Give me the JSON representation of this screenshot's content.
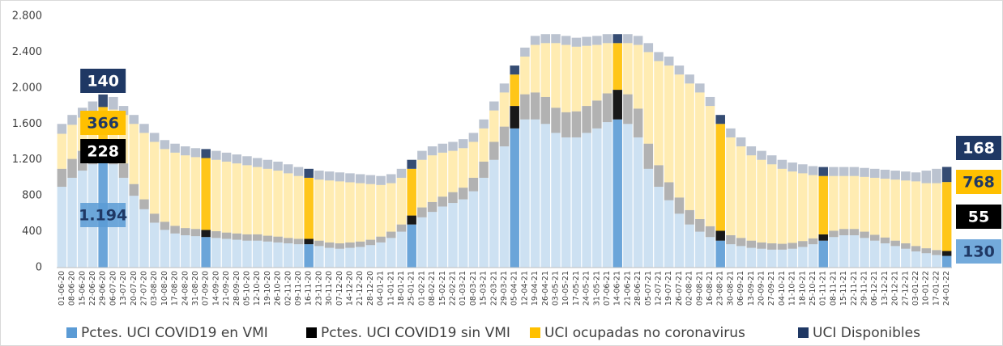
{
  "chart_data": {
    "type": "stacked_bar",
    "categories": [
      "01-06-20",
      "08-06-20",
      "15-06-20",
      "22-06-20",
      "29-06-20",
      "06-07-20",
      "13-07-20",
      "20-07-20",
      "27-07-20",
      "03-08-20",
      "10-08-20",
      "17-08-20",
      "24-08-20",
      "31-08-20",
      "07-09-20",
      "14-09-20",
      "21-09-20",
      "28-09-20",
      "05-10-20",
      "12-10-20",
      "19-10-20",
      "26-10-20",
      "02-11-20",
      "09-11-20",
      "16-11-20",
      "23-11-20",
      "30-11-20",
      "07-12-20",
      "14-12-20",
      "21-12-20",
      "28-12-20",
      "04-01-21",
      "11-01-21",
      "18-01-21",
      "25-01-21",
      "01-02-21",
      "08-02-21",
      "15-02-21",
      "22-02-21",
      "01-03-21",
      "08-03-21",
      "15-03-21",
      "22-03-21",
      "29-03-21",
      "05-04-21",
      "12-04-21",
      "19-04-21",
      "26-04-21",
      "03-05-21",
      "10-05-21",
      "17-05-21",
      "24-05-21",
      "31-05-21",
      "07-06-21",
      "14-06-21",
      "21-06-21",
      "28-06-21",
      "05-07-21",
      "12-07-21",
      "19-07-21",
      "26-07-21",
      "02-08-21",
      "09-08-21",
      "16-08-21",
      "23-08-21",
      "30-08-21",
      "06-09-21",
      "13-09-21",
      "20-09-21",
      "27-09-21",
      "04-10-21",
      "11-10-21",
      "18-10-21",
      "25-10-21",
      "01-11-21",
      "08-11-21",
      "15-11-21",
      "22-11-21",
      "29-11-21",
      "06-12-21",
      "13-12-21",
      "20-12-21",
      "27-12-21",
      "03-01-22",
      "10-01-22",
      "17-01-22",
      "24-01-22"
    ],
    "series": [
      {
        "name": "Pctes. UCI COVID19 en VMI",
        "color": "#5b9bd5",
        "values": [
          900,
          1000,
          1080,
          1150,
          1194,
          1150,
          1000,
          800,
          650,
          500,
          420,
          380,
          360,
          350,
          340,
          330,
          320,
          310,
          300,
          300,
          290,
          280,
          270,
          260,
          260,
          240,
          220,
          210,
          220,
          230,
          250,
          280,
          330,
          400,
          480,
          560,
          620,
          680,
          720,
          760,
          850,
          1000,
          1200,
          1350,
          1550,
          1650,
          1650,
          1600,
          1500,
          1450,
          1450,
          1500,
          1550,
          1620,
          1650,
          1600,
          1450,
          1100,
          900,
          750,
          600,
          480,
          400,
          340,
          300,
          260,
          240,
          220,
          210,
          200,
          200,
          210,
          230,
          260,
          300,
          340,
          360,
          360,
          330,
          300,
          270,
          240,
          210,
          180,
          160,
          140,
          130
        ],
        "value_labels": [
          null,
          null,
          null,
          null,
          "1.194",
          null,
          null,
          null,
          null,
          null,
          null,
          null,
          null,
          null,
          null,
          null,
          null,
          null,
          null,
          null,
          null,
          null,
          null,
          null,
          null,
          null,
          null,
          null,
          null,
          null,
          null,
          null,
          null,
          null,
          null,
          null,
          null,
          null,
          null,
          null,
          null,
          null,
          null,
          null,
          null,
          null,
          null,
          null,
          null,
          null,
          null,
          null,
          null,
          null,
          null,
          null,
          null,
          null,
          null,
          null,
          null,
          null,
          null,
          null,
          null,
          null,
          null,
          null,
          null,
          null,
          null,
          null,
          null,
          null,
          null,
          null,
          null,
          null,
          null,
          null,
          null,
          null,
          null,
          null,
          null,
          null,
          "130"
        ]
      },
      {
        "name": "Pctes. UCI COVID19 sin VMI",
        "color": "#000000",
        "values": [
          200,
          210,
          220,
          225,
          228,
          200,
          160,
          130,
          110,
          100,
          90,
          85,
          80,
          80,
          80,
          75,
          70,
          70,
          70,
          70,
          65,
          65,
          60,
          60,
          60,
          60,
          60,
          60,
          60,
          60,
          60,
          65,
          70,
          80,
          100,
          110,
          110,
          110,
          120,
          130,
          150,
          180,
          200,
          220,
          250,
          280,
          300,
          300,
          280,
          280,
          290,
          300,
          310,
          320,
          330,
          330,
          320,
          280,
          240,
          200,
          180,
          160,
          140,
          120,
          110,
          100,
          90,
          80,
          70,
          70,
          65,
          65,
          65,
          65,
          70,
          70,
          70,
          70,
          70,
          65,
          65,
          60,
          60,
          60,
          55,
          55,
          55
        ],
        "value_labels": [
          null,
          null,
          null,
          null,
          "228",
          null,
          null,
          null,
          null,
          null,
          null,
          null,
          null,
          null,
          null,
          null,
          null,
          null,
          null,
          null,
          null,
          null,
          null,
          null,
          null,
          null,
          null,
          null,
          null,
          null,
          null,
          null,
          null,
          null,
          null,
          null,
          null,
          null,
          null,
          null,
          null,
          null,
          null,
          null,
          null,
          null,
          null,
          null,
          null,
          null,
          null,
          null,
          null,
          null,
          null,
          null,
          null,
          null,
          null,
          null,
          null,
          null,
          null,
          null,
          null,
          null,
          null,
          null,
          null,
          null,
          null,
          null,
          null,
          null,
          null,
          null,
          null,
          null,
          null,
          null,
          null,
          null,
          null,
          null,
          null,
          null,
          "55"
        ]
      },
      {
        "name": "UCI ocupadas no coronavirus",
        "color": "#ffc000",
        "values": [
          390,
          380,
          370,
          365,
          366,
          410,
          540,
          670,
          740,
          800,
          810,
          815,
          810,
          800,
          800,
          795,
          790,
          780,
          770,
          750,
          745,
          735,
          720,
          700,
          680,
          680,
          690,
          690,
          670,
          650,
          620,
          575,
          540,
          520,
          520,
          530,
          520,
          490,
          460,
          440,
          400,
          370,
          350,
          380,
          350,
          420,
          530,
          600,
          720,
          750,
          720,
          670,
          620,
          560,
          520,
          570,
          710,
          1020,
          1160,
          1300,
          1370,
          1410,
          1410,
          1340,
          1190,
          1090,
          1020,
          950,
          920,
          880,
          835,
          795,
          755,
          705,
          650,
          610,
          590,
          590,
          610,
          635,
          655,
          680,
          700,
          720,
          725,
          745,
          768
        ],
        "value_labels": [
          null,
          null,
          null,
          null,
          "366",
          null,
          null,
          null,
          null,
          null,
          null,
          null,
          null,
          null,
          null,
          null,
          null,
          null,
          null,
          null,
          null,
          null,
          null,
          null,
          null,
          null,
          null,
          null,
          null,
          null,
          null,
          null,
          null,
          null,
          null,
          null,
          null,
          null,
          null,
          null,
          null,
          null,
          null,
          null,
          null,
          null,
          null,
          null,
          null,
          null,
          null,
          null,
          null,
          null,
          null,
          null,
          null,
          null,
          null,
          null,
          null,
          null,
          null,
          null,
          null,
          null,
          null,
          null,
          null,
          null,
          null,
          null,
          null,
          null,
          null,
          null,
          null,
          null,
          null,
          null,
          null,
          null,
          null,
          null,
          null,
          null,
          "768"
        ]
      },
      {
        "name": "UCI Disponibles",
        "color": "#1f3864",
        "values": [
          110,
          110,
          110,
          110,
          140,
          140,
          100,
          100,
          100,
          100,
          100,
          100,
          100,
          100,
          100,
          100,
          100,
          100,
          100,
          100,
          100,
          100,
          100,
          100,
          100,
          100,
          100,
          100,
          100,
          100,
          100,
          100,
          100,
          100,
          100,
          100,
          100,
          100,
          100,
          100,
          100,
          100,
          100,
          100,
          100,
          100,
          100,
          100,
          100,
          100,
          100,
          100,
          100,
          100,
          100,
          100,
          100,
          100,
          100,
          100,
          100,
          100,
          100,
          100,
          100,
          100,
          100,
          100,
          100,
          100,
          100,
          100,
          100,
          100,
          100,
          100,
          100,
          100,
          100,
          100,
          100,
          100,
          100,
          100,
          140,
          160,
          168
        ],
        "value_labels": [
          null,
          null,
          null,
          null,
          "140",
          null,
          null,
          null,
          null,
          null,
          null,
          null,
          null,
          null,
          null,
          null,
          null,
          null,
          null,
          null,
          null,
          null,
          null,
          null,
          null,
          null,
          null,
          null,
          null,
          null,
          null,
          null,
          null,
          null,
          null,
          null,
          null,
          null,
          null,
          null,
          null,
          null,
          null,
          null,
          null,
          null,
          null,
          null,
          null,
          null,
          null,
          null,
          null,
          null,
          null,
          null,
          null,
          null,
          null,
          null,
          null,
          null,
          null,
          null,
          null,
          null,
          null,
          null,
          null,
          null,
          null,
          null,
          null,
          null,
          null,
          null,
          null,
          null,
          null,
          null,
          null,
          null,
          null,
          null,
          null,
          null,
          "168"
        ]
      }
    ],
    "highlight": [
      4,
      14,
      24,
      34,
      44,
      54,
      64,
      74,
      86
    ],
    "ylim": [
      0,
      2800
    ],
    "yticks": [
      0,
      400,
      800,
      {
        "value": 1200,
        "label": "1.200"
      },
      {
        "value": 1600,
        "label": "1.600"
      },
      {
        "value": 2000,
        "label": "2.000"
      },
      {
        "value": 2400,
        "label": "2.400"
      },
      {
        "value": 2800,
        "label": "2.800"
      }
    ],
    "grid": false,
    "legend": "bottom"
  }
}
